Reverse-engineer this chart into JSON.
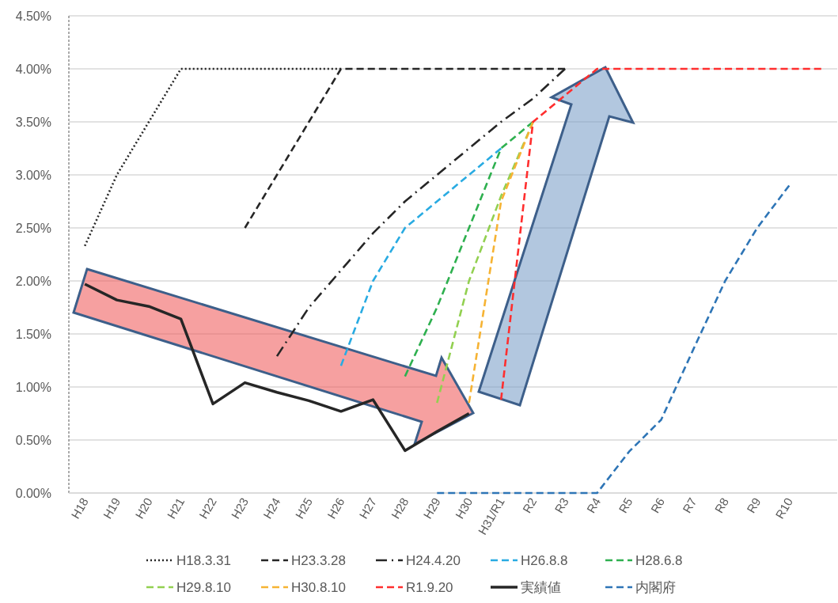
{
  "chart_data": {
    "type": "line",
    "categories": [
      "H18",
      "H19",
      "H20",
      "H21",
      "H22",
      "H23",
      "H24",
      "H25",
      "H26",
      "H27",
      "H28",
      "H29",
      "H30",
      "H31/R1",
      "R2",
      "R3",
      "R4",
      "R5",
      "R6",
      "R7",
      "R8",
      "R9",
      "R10",
      null
    ],
    "ylim": [
      0,
      4.5
    ],
    "yticks": [
      {
        "value": 0,
        "label": "0.00%"
      },
      {
        "value": 0.5,
        "label": "0.50%"
      },
      {
        "value": 1,
        "label": "1.00%"
      },
      {
        "value": 1.5,
        "label": "1.50%"
      },
      {
        "value": 2,
        "label": "2.00%"
      },
      {
        "value": 2.5,
        "label": "2.50%"
      },
      {
        "value": 3,
        "label": "3.00%"
      },
      {
        "value": 3.5,
        "label": "3.50%"
      },
      {
        "value": 4,
        "label": "4.00%"
      },
      {
        "value": 4.5,
        "label": "4.50%"
      }
    ],
    "grid": "y",
    "legend": "bottom",
    "series": [
      {
        "name": "H18.3.31",
        "color": "#262626",
        "line_style": "dotted",
        "values": [
          2.33,
          3.0,
          3.5,
          4.0,
          4.0,
          4.0,
          4.0,
          4.0,
          4.0,
          null,
          null,
          null,
          null,
          null,
          null,
          null,
          null,
          null,
          null,
          null,
          null,
          null,
          null,
          null
        ]
      },
      {
        "name": "H23.3.28",
        "color": "#262626",
        "line_style": "dashed",
        "values": [
          null,
          null,
          null,
          null,
          null,
          2.5,
          3.0,
          3.5,
          4.0,
          4.0,
          4.0,
          4.0,
          4.0,
          4.0,
          4.0,
          4.0,
          null,
          null,
          null,
          null,
          null,
          null,
          null,
          null
        ]
      },
      {
        "name": "H24.4.20",
        "color": "#262626",
        "line_style": "dashdot",
        "values": [
          null,
          null,
          null,
          null,
          null,
          null,
          1.29,
          1.75,
          2.1,
          2.45,
          2.75,
          3.0,
          3.25,
          3.5,
          3.72,
          4.0,
          null,
          null,
          null,
          null,
          null,
          null,
          null,
          null
        ]
      },
      {
        "name": "H26.8.8",
        "color": "#29abe2",
        "line_style": "dashed",
        "values": [
          null,
          null,
          null,
          null,
          null,
          null,
          null,
          null,
          1.2,
          2.0,
          2.5,
          2.75,
          3.0,
          3.25,
          null,
          null,
          null,
          null,
          null,
          null,
          null,
          null,
          null,
          null
        ]
      },
      {
        "name": "H28.6.8",
        "color": "#2eb04f",
        "line_style": "dashed",
        "values": [
          null,
          null,
          null,
          null,
          null,
          null,
          null,
          null,
          null,
          null,
          1.1,
          1.75,
          2.5,
          3.25,
          3.5,
          null,
          null,
          null,
          null,
          null,
          null,
          null,
          null,
          null
        ]
      },
      {
        "name": "H29.8.10",
        "color": "#92d050",
        "line_style": "dashed",
        "values": [
          null,
          null,
          null,
          null,
          null,
          null,
          null,
          null,
          null,
          null,
          null,
          0.85,
          2.0,
          2.8,
          3.5,
          null,
          null,
          null,
          null,
          null,
          null,
          null,
          null,
          null
        ]
      },
      {
        "name": "H30.8.10",
        "color": "#f6b333",
        "line_style": "dashed",
        "values": [
          null,
          null,
          null,
          null,
          null,
          null,
          null,
          null,
          null,
          null,
          null,
          null,
          0.85,
          2.75,
          3.5,
          null,
          null,
          null,
          null,
          null,
          null,
          null,
          null,
          null
        ]
      },
      {
        "name": "R1.9.20",
        "color": "#ff2e2e",
        "line_style": "dashed",
        "values": [
          null,
          null,
          null,
          null,
          null,
          null,
          null,
          null,
          null,
          null,
          null,
          null,
          null,
          0.88,
          3.5,
          3.75,
          4.0,
          4.0,
          4.0,
          4.0,
          4.0,
          4.0,
          4.0,
          4.0
        ]
      },
      {
        "name": "実績値",
        "color": "#262626",
        "line_style": "solid",
        "values": [
          1.97,
          1.82,
          1.76,
          1.64,
          0.84,
          1.04,
          0.95,
          0.87,
          0.77,
          0.88,
          0.4,
          0.58,
          0.75,
          null,
          null,
          null,
          null,
          null,
          null,
          null,
          null,
          null,
          null,
          null
        ]
      },
      {
        "name": "内閣府",
        "color": "#2e75b6",
        "line_style": "dashed",
        "values": [
          null,
          null,
          null,
          null,
          null,
          null,
          null,
          null,
          null,
          null,
          null,
          0,
          0,
          0,
          0,
          0,
          0,
          0.39,
          0.69,
          1.35,
          2.0,
          2.5,
          2.9,
          null
        ]
      }
    ]
  }
}
